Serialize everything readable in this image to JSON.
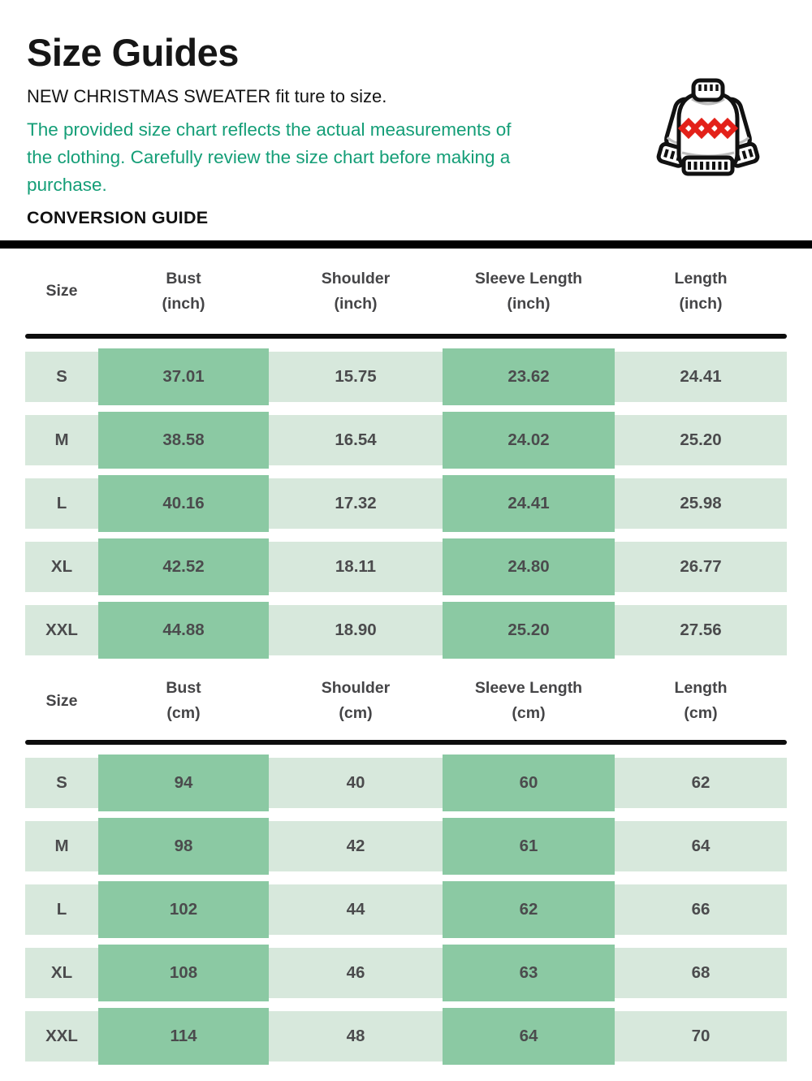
{
  "page": {
    "title": "Size Guides",
    "subtitle": "NEW CHRISTMAS SWEATER fit ture to size.",
    "note": "The provided size chart reflects the actual measurements of the clothing. Carefully review the size chart before making a purchase.",
    "section_label": "CONVERSION GUIDE"
  },
  "colors": {
    "accent_text_green": "#149e77",
    "cell_dark_green": "#8bc9a3",
    "cell_light_green": "#d7e8dc",
    "divider_black": "#0d0d0d",
    "cell_text": "#4b4b4d",
    "header_text": "#454547",
    "sweater_red": "#e32119",
    "sweater_outline": "#111111"
  },
  "icons": [
    {
      "name": "sweater-icon",
      "description": "white christmas sweater with red diamond band, ribbed collar, cuffs and hem"
    }
  ],
  "tables": [
    {
      "unit": "inch",
      "columns": [
        {
          "key": "size",
          "label": "Size",
          "sub": ""
        },
        {
          "key": "bust",
          "label": "Bust",
          "sub": "(inch)"
        },
        {
          "key": "shoulder",
          "label": "Shoulder",
          "sub": "(inch)"
        },
        {
          "key": "sleeve-length",
          "label": "Sleeve Length",
          "sub": "(inch)"
        },
        {
          "key": "length",
          "label": "Length",
          "sub": "(inch)"
        }
      ],
      "rows": [
        {
          "size": "S",
          "values": [
            "37.01",
            "15.75",
            "23.62",
            "24.41"
          ]
        },
        {
          "size": "M",
          "values": [
            "38.58",
            "16.54",
            "24.02",
            "25.20"
          ]
        },
        {
          "size": "L",
          "values": [
            "40.16",
            "17.32",
            "24.41",
            "25.98"
          ]
        },
        {
          "size": "XL",
          "values": [
            "42.52",
            "18.11",
            "24.80",
            "26.77"
          ]
        },
        {
          "size": "XXL",
          "values": [
            "44.88",
            "18.90",
            "25.20",
            "27.56"
          ]
        }
      ]
    },
    {
      "unit": "cm",
      "columns": [
        {
          "key": "size",
          "label": "Size",
          "sub": ""
        },
        {
          "key": "bust",
          "label": "Bust",
          "sub": "(cm)"
        },
        {
          "key": "shoulder",
          "label": "Shoulder",
          "sub": "(cm)"
        },
        {
          "key": "sleeve-length",
          "label": "Sleeve Length",
          "sub": "(cm)"
        },
        {
          "key": "length",
          "label": "Length",
          "sub": "(cm)"
        }
      ],
      "rows": [
        {
          "size": "S",
          "values": [
            "94",
            "40",
            "60",
            "62"
          ]
        },
        {
          "size": "M",
          "values": [
            "98",
            "42",
            "61",
            "64"
          ]
        },
        {
          "size": "L",
          "values": [
            "102",
            "44",
            "62",
            "66"
          ]
        },
        {
          "size": "XL",
          "values": [
            "108",
            "46",
            "63",
            "68"
          ]
        },
        {
          "size": "XXL",
          "values": [
            "114",
            "48",
            "64",
            "70"
          ]
        }
      ]
    }
  ]
}
